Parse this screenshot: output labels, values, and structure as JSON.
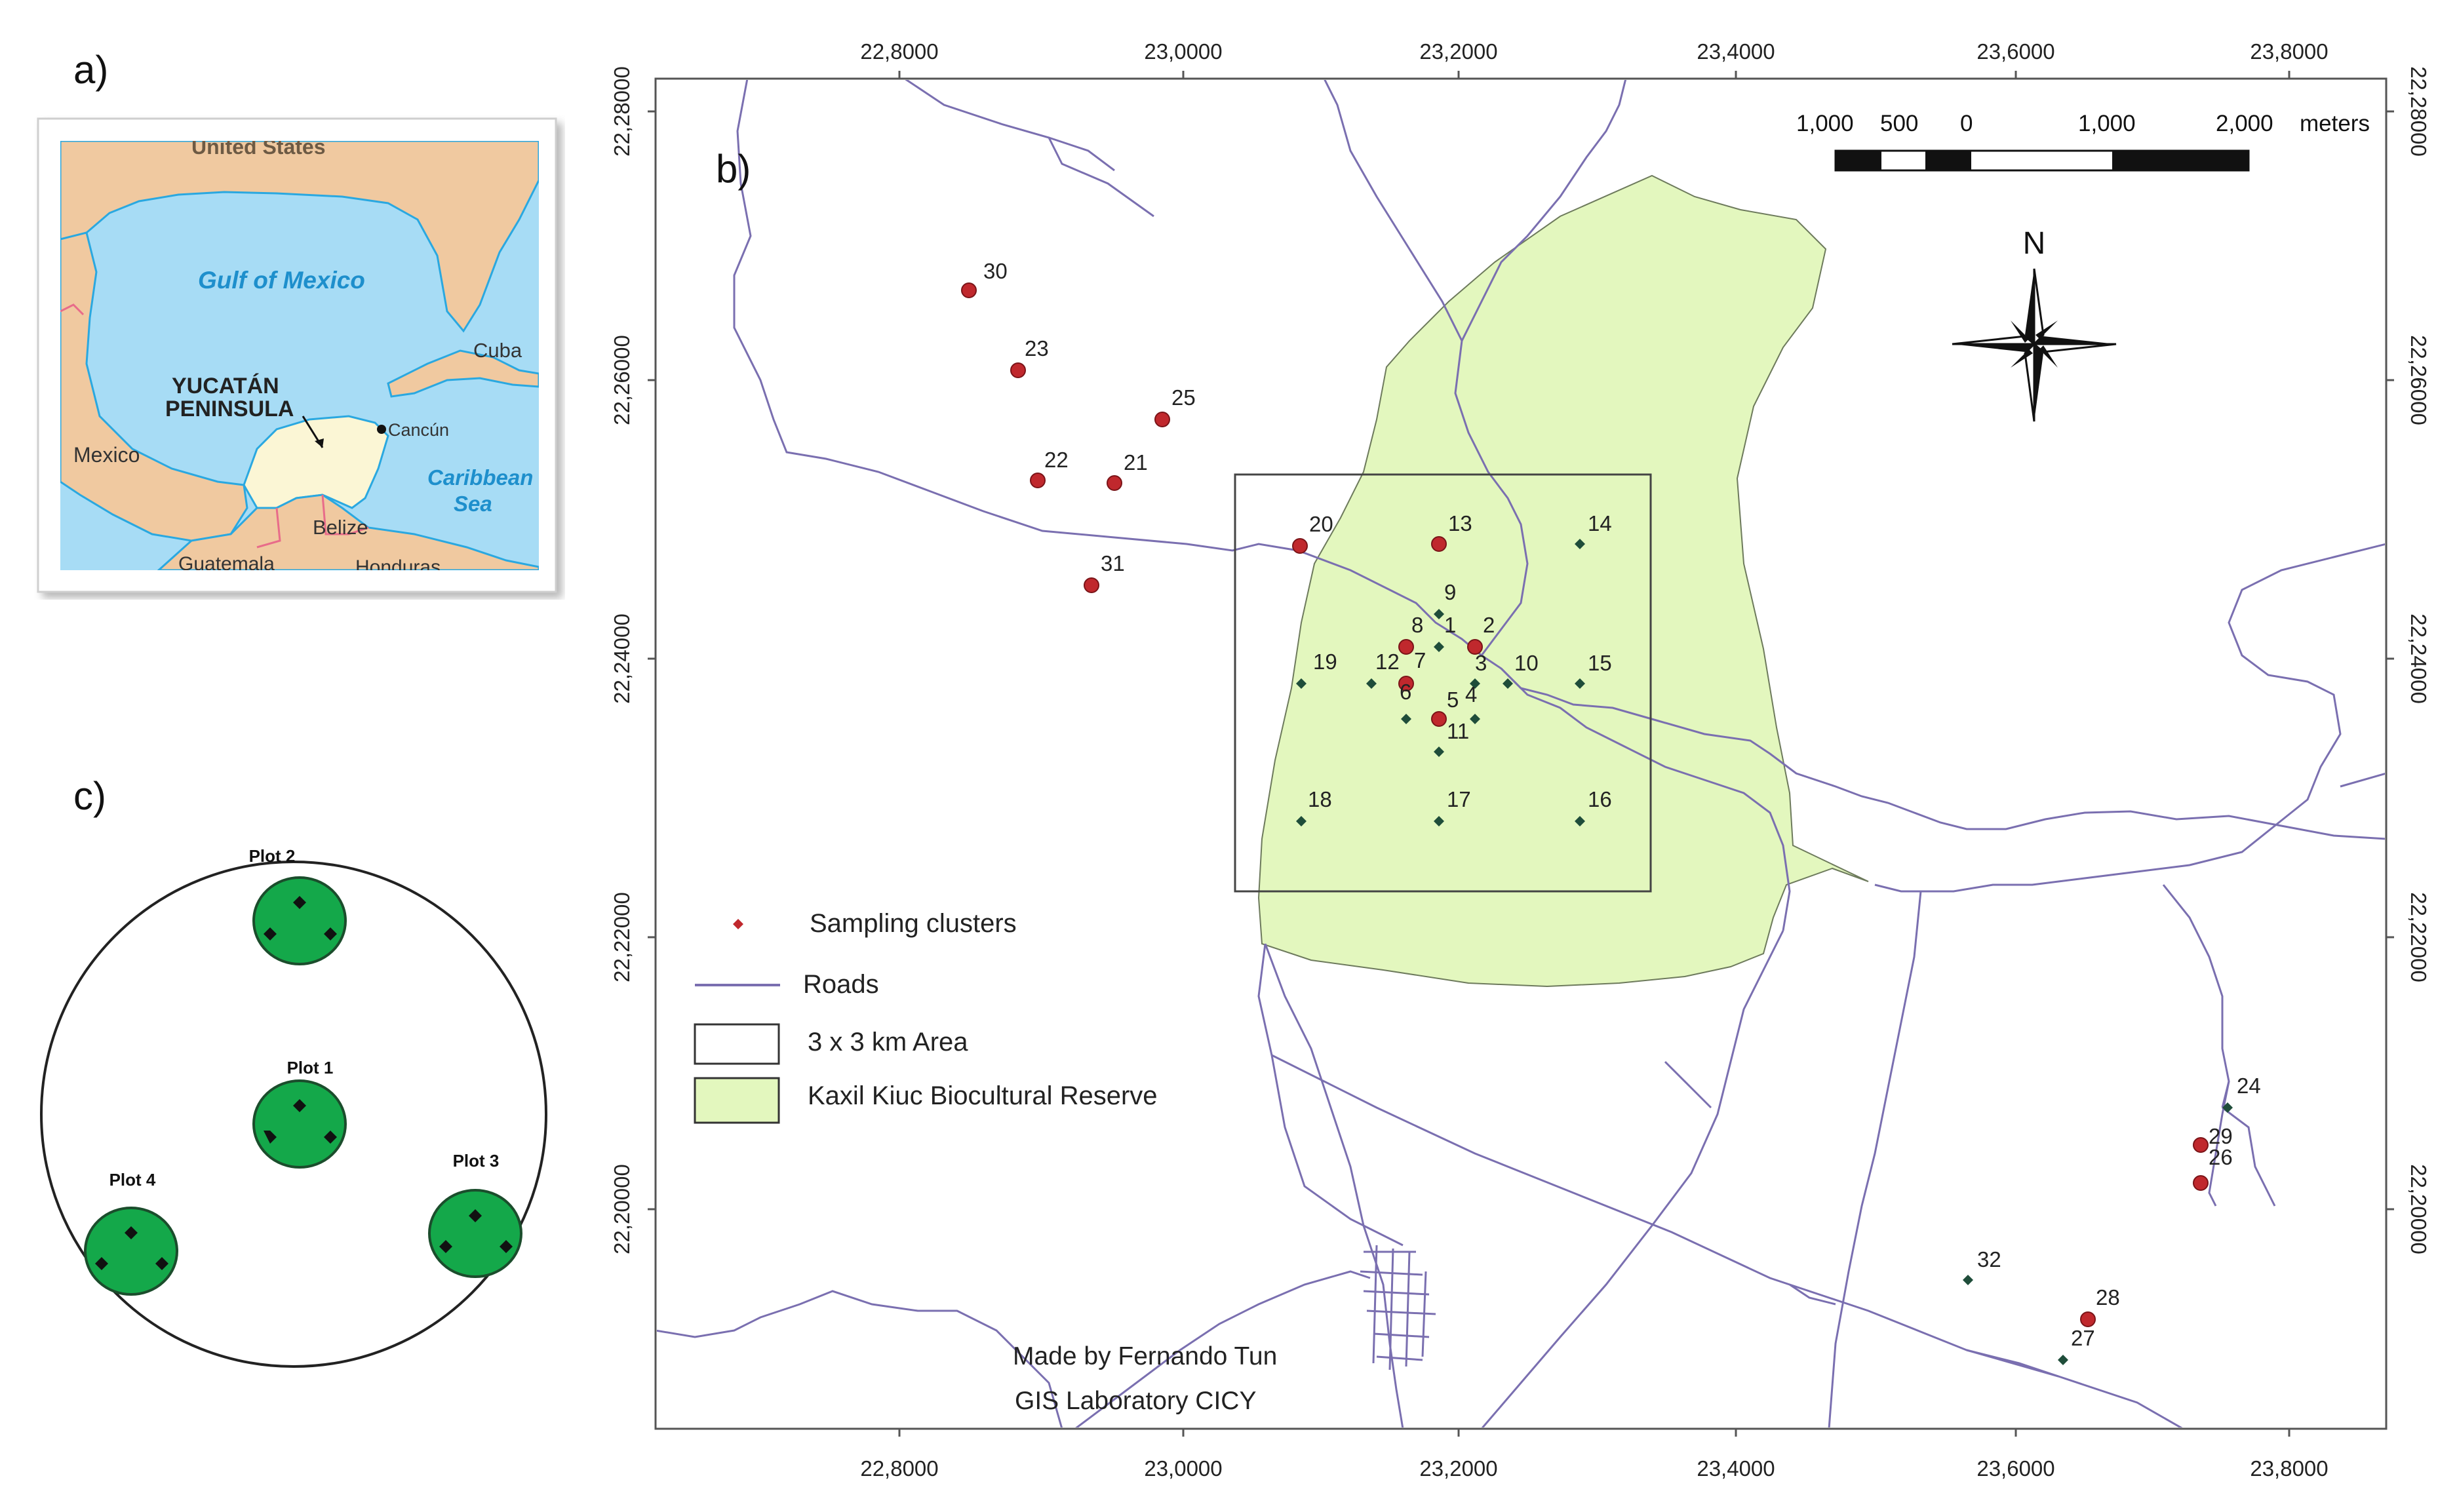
{
  "panel_labels": {
    "a": "a)",
    "b": "b)",
    "c": "c)"
  },
  "inset_map": {
    "labels": {
      "us": "United States",
      "gulf": "Gulf of Mexico",
      "peninsula_1": "YUCATÁN",
      "peninsula_2": "PENINSULA",
      "cuba": "Cuba",
      "cancun": "Cancún",
      "mexico": "Mexico",
      "caribbean_1": "Caribbean",
      "caribbean_2": "Sea",
      "belize": "Belize",
      "guatemala": "Guatemala",
      "honduras": "Honduras"
    },
    "colors": {
      "sea": "#a7dcf5",
      "land": "#f0c9a0",
      "peninsula": "#fbf6d5",
      "coast": "#2aa8e0"
    }
  },
  "main_map": {
    "x_ticks": [
      "22,8000",
      "23,0000",
      "23,2000",
      "23,4000",
      "23,6000",
      "23,8000"
    ],
    "y_ticks": [
      "22,28000",
      "22,26000",
      "22,24000",
      "22,22000",
      "22,20000"
    ],
    "scale_bar": {
      "labels": [
        "1,000",
        "500",
        "0",
        "1,000",
        "2,000"
      ],
      "unit": "meters"
    },
    "north_label": "N",
    "legend": {
      "sampling": "Sampling clusters",
      "roads": "Roads",
      "area": "3 x 3 km Area",
      "reserve": "Kaxil Kiuc Biocultural Reserve"
    },
    "credit_1": "Made by Fernando Tun",
    "credit_2": "GIS Laboratory CICY",
    "clusters": [
      {
        "id": "30",
        "kind": "red"
      },
      {
        "id": "23",
        "kind": "red"
      },
      {
        "id": "25",
        "kind": "red"
      },
      {
        "id": "22",
        "kind": "red"
      },
      {
        "id": "21",
        "kind": "red"
      },
      {
        "id": "31",
        "kind": "red"
      },
      {
        "id": "20",
        "kind": "red"
      },
      {
        "id": "13",
        "kind": "red"
      },
      {
        "id": "14",
        "kind": "green"
      },
      {
        "id": "9",
        "kind": "green"
      },
      {
        "id": "8",
        "kind": "red"
      },
      {
        "id": "1",
        "kind": "green"
      },
      {
        "id": "2",
        "kind": "red"
      },
      {
        "id": "19",
        "kind": "green"
      },
      {
        "id": "12",
        "kind": "green"
      },
      {
        "id": "7",
        "kind": "red"
      },
      {
        "id": "3",
        "kind": "green"
      },
      {
        "id": "10",
        "kind": "green"
      },
      {
        "id": "15",
        "kind": "green"
      },
      {
        "id": "6",
        "kind": "green"
      },
      {
        "id": "5",
        "kind": "red"
      },
      {
        "id": "4",
        "kind": "green"
      },
      {
        "id": "11",
        "kind": "green"
      },
      {
        "id": "18",
        "kind": "green"
      },
      {
        "id": "17",
        "kind": "green"
      },
      {
        "id": "16",
        "kind": "green"
      },
      {
        "id": "24",
        "kind": "green"
      },
      {
        "id": "29",
        "kind": "red"
      },
      {
        "id": "26",
        "kind": "red"
      },
      {
        "id": "32",
        "kind": "green"
      },
      {
        "id": "28",
        "kind": "red"
      },
      {
        "id": "27",
        "kind": "green"
      }
    ],
    "colors": {
      "reserve": "#e3f7be",
      "road": "#7a6fb0",
      "red_point": "#c0282d",
      "green_point": "#1f4d3a"
    }
  },
  "plot_diagram": {
    "plots": [
      "Plot 2",
      "Plot 1",
      "Plot 3",
      "Plot 4"
    ],
    "colors": {
      "plot": "#14a84a",
      "outline": "#222222"
    }
  }
}
